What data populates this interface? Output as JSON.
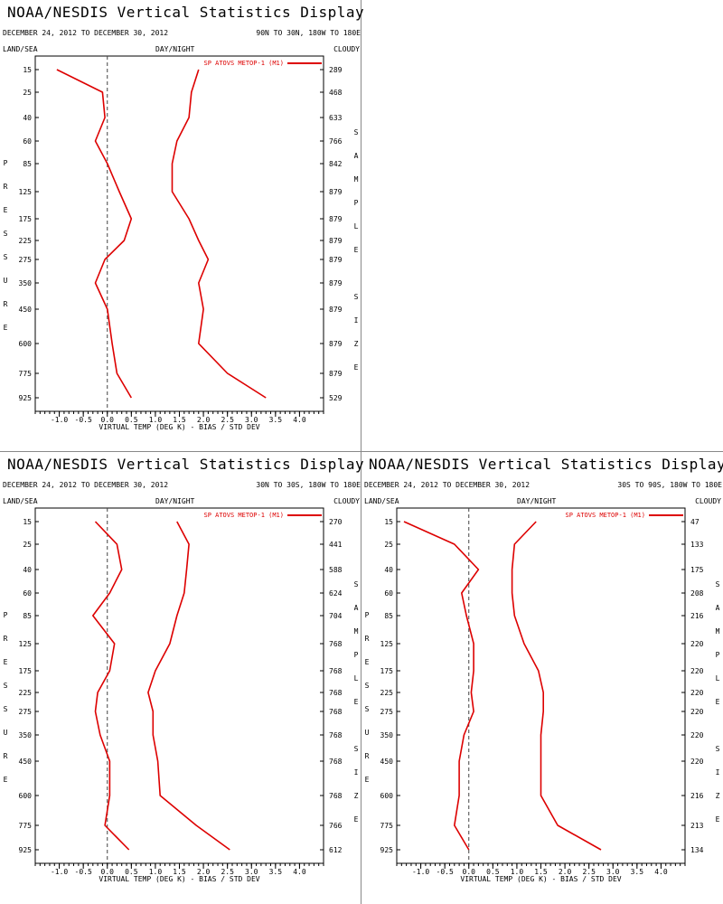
{
  "common": {
    "title": "NOAA/NESDIS Vertical Statistics Display",
    "dates": "DECEMBER 24, 2012 TO DECEMBER 30, 2012",
    "land_sea": "LAND/SEA",
    "day_night": "DAY/NIGHT",
    "cloudy": "CLOUDY",
    "xlabel": "VIRTUAL TEMP (DEG K) - BIAS / STD DEV",
    "pressure_label": "PRESSURE",
    "sample_size_label": "SAMPLE SIZE",
    "legend": "SP ATOVS METOP-1 (M1)",
    "series_color": "#dd0000"
  },
  "chart_data": [
    {
      "type": "line",
      "region": "90N TO 30N, 180W TO 180E",
      "y_pressure_levels": [
        15,
        25,
        40,
        60,
        85,
        125,
        175,
        225,
        275,
        350,
        450,
        600,
        775,
        925
      ],
      "x_ticks": [
        "-1.0",
        "-0.5",
        "0.0",
        "0.5",
        "1.0",
        "1.5",
        "2.0",
        "2.5",
        "3.0",
        "3.5",
        "4.0"
      ],
      "xlim": [
        -1.5,
        4.5
      ],
      "xlabel": "VIRTUAL TEMP (DEG K) - BIAS / STD DEV",
      "series": [
        {
          "name": "SP ATOVS METOP-1 (M1)",
          "bias": [
            -1.05,
            -0.1,
            -0.05,
            -0.25,
            0.0,
            0.25,
            0.5,
            0.35,
            -0.05,
            -0.25,
            0.0,
            0.1,
            0.2,
            0.5
          ],
          "std_dev": [
            1.9,
            1.75,
            1.7,
            1.45,
            1.35,
            1.35,
            1.7,
            1.9,
            2.1,
            1.9,
            2.0,
            1.9,
            2.5,
            3.3
          ]
        }
      ],
      "sample_size": [
        "289",
        "468",
        "633",
        "766",
        "842",
        "879",
        "879",
        "879",
        "879",
        "879",
        "879",
        "879",
        "879",
        "529"
      ]
    },
    {
      "type": "line",
      "region": "30N TO 30S, 180W TO 180E",
      "y_pressure_levels": [
        15,
        25,
        40,
        60,
        85,
        125,
        175,
        225,
        275,
        350,
        450,
        600,
        775,
        925
      ],
      "x_ticks": [
        "-1.0",
        "-0.5",
        "0.0",
        "0.5",
        "1.0",
        "1.5",
        "2.0",
        "2.5",
        "3.0",
        "3.5",
        "4.0"
      ],
      "xlim": [
        -1.5,
        4.5
      ],
      "xlabel": "VIRTUAL TEMP (DEG K) - BIAS / STD DEV",
      "series": [
        {
          "name": "SP ATOVS METOP-1 (M1)",
          "bias": [
            -0.25,
            0.2,
            0.3,
            0.05,
            -0.3,
            0.15,
            0.05,
            -0.2,
            -0.25,
            -0.15,
            0.05,
            0.05,
            -0.05,
            0.45
          ],
          "std_dev": [
            1.45,
            1.7,
            1.65,
            1.6,
            1.45,
            1.3,
            1.0,
            0.85,
            0.95,
            0.95,
            1.05,
            1.1,
            1.85,
            2.55
          ]
        }
      ],
      "sample_size": [
        "270",
        "441",
        "588",
        "624",
        "704",
        "768",
        "768",
        "768",
        "768",
        "768",
        "768",
        "768",
        "766",
        "612"
      ]
    },
    {
      "type": "line",
      "region": "30S TO 90S, 180W TO 180E",
      "y_pressure_levels": [
        15,
        25,
        40,
        60,
        85,
        125,
        175,
        225,
        275,
        350,
        450,
        600,
        775,
        925
      ],
      "x_ticks": [
        "-1.0",
        "-0.5",
        "0.0",
        "0.5",
        "1.0",
        "1.5",
        "2.0",
        "2.5",
        "3.0",
        "3.5",
        "4.0"
      ],
      "xlim": [
        -1.5,
        4.5
      ],
      "xlabel": "VIRTUAL TEMP (DEG K) - BIAS / STD DEV",
      "series": [
        {
          "name": "SP ATOVS METOP-1 (M1)",
          "bias": [
            -1.35,
            -0.3,
            0.2,
            -0.15,
            -0.05,
            0.1,
            0.1,
            0.05,
            0.1,
            -0.1,
            -0.2,
            -0.2,
            -0.3,
            0.0
          ],
          "std_dev": [
            1.4,
            0.95,
            0.9,
            0.9,
            0.95,
            1.15,
            1.45,
            1.55,
            1.55,
            1.5,
            1.5,
            1.5,
            1.85,
            2.75
          ]
        }
      ],
      "sample_size": [
        "47",
        "133",
        "175",
        "208",
        "216",
        "220",
        "220",
        "220",
        "220",
        "220",
        "220",
        "216",
        "213",
        "134"
      ]
    }
  ]
}
